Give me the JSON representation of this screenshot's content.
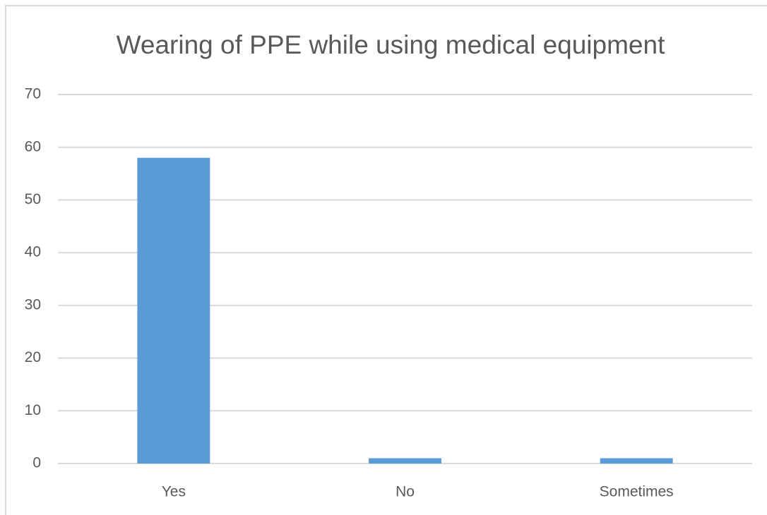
{
  "chart_data": {
    "type": "bar",
    "title": "Wearing of PPE while using medical equipment",
    "categories": [
      "Yes",
      "No",
      "Sometimes"
    ],
    "values": [
      58,
      1,
      1
    ],
    "color": "#5b9bd5",
    "ylim": [
      0,
      70
    ],
    "yticks": [
      0,
      10,
      20,
      30,
      40,
      50,
      60,
      70
    ],
    "grid": true
  }
}
